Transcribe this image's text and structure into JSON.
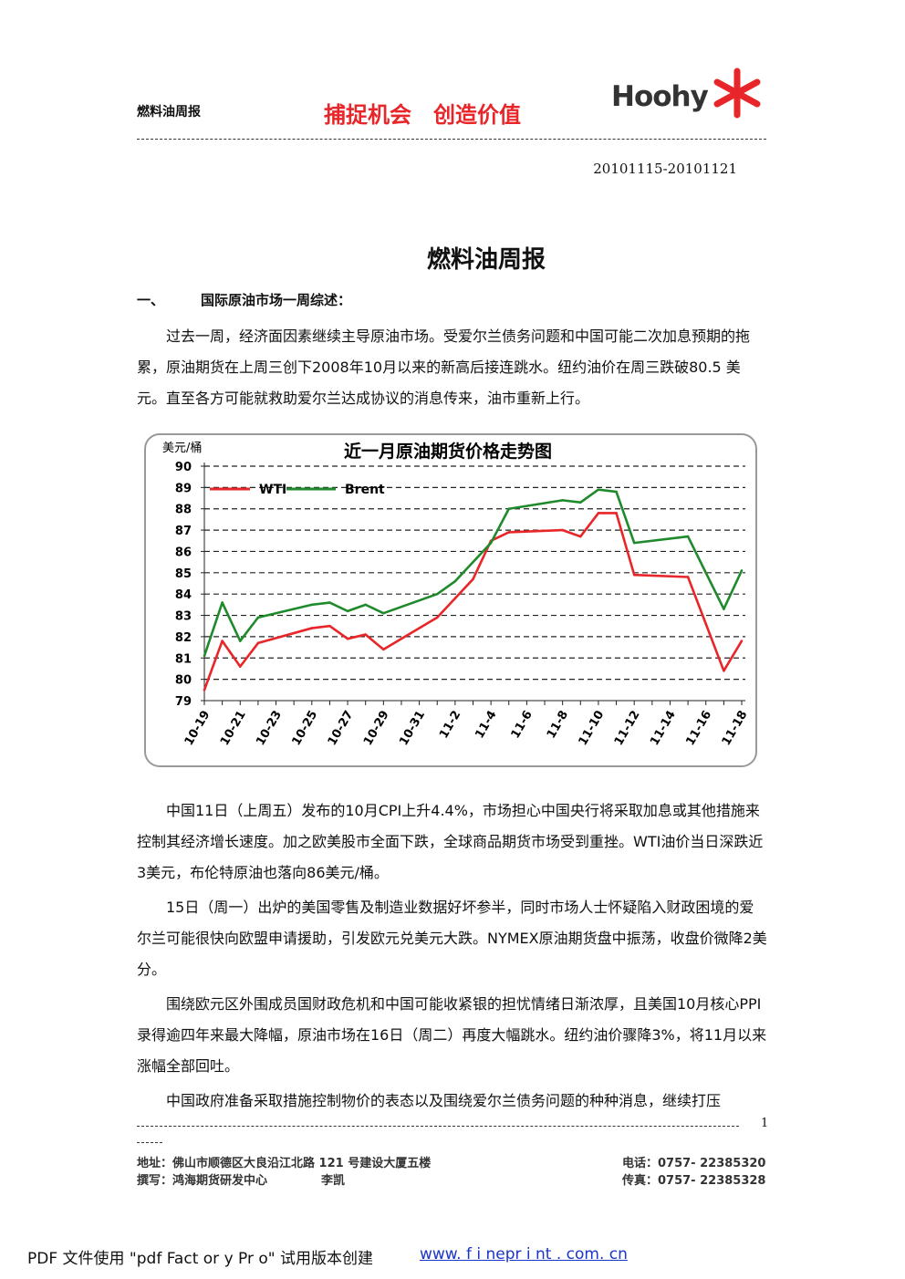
{
  "header": {
    "doc_name": "燃料油周报",
    "slogan": "捕捉机会　创造价值",
    "logo": "Hoohy"
  },
  "date_range": "20101115-20101121",
  "title": "燃料油周报",
  "section": {
    "number": "一、",
    "heading": "国际原油市场一周综述："
  },
  "paragraphs_before": [
    "过去一周，经济面因素继续主导原油市场。受爱尔兰债务问题和中国可能二次加息预期的拖累，原油期货在上周三创下2008年10月以来的新高后接连跳水。纽约油价在周三跌破80.5 美元。直至各方可能就救助爱尔兰达成协议的消息传来，油市重新上行。"
  ],
  "paragraphs_after": [
    "中国11日（上周五）发布的10月CPI上升4.4%，市场担心中国央行将采取加息或其他措施来控制其经济增长速度。加之欧美股市全面下跌，全球商品期货市场受到重挫。WTI油价当日深跌近3美元，布伦特原油也落向86美元/桶。",
    "15日（周一）出炉的美国零售及制造业数据好坏参半，同时市场人士怀疑陷入财政困境的爱尔兰可能很快向欧盟申请援助，引发欧元兑美元大跌。NYMEX原油期货盘中振荡，收盘价微降2美分。",
    "围绕欧元区外围成员国财政危机和中国可能收紧银的担忧情绪日渐浓厚，且美国10月核心PPI录得逾四年来最大降幅，原油市场在16日（周二）再度大幅跳水。纽约油价骤降3%，将11月以来涨幅全部回吐。",
    "中国政府准备采取措施控制物价的表态以及围绕爱尔兰债务问题的种种消息，继续打压"
  ],
  "footer": {
    "page": "1",
    "address": "地址：佛山市顺德区大良沿江北路 121 号建设大厦五楼",
    "phone": "电话：0757- 22385320",
    "author": "撰写：鸿海期货研发中心",
    "author_name": "李凯",
    "fax": "传真：0757- 22385328"
  },
  "watermark": {
    "text": "PDF 文件使用 \"pdf Fact or y Pr o\" 试用版本创建",
    "link": "www. f i nepr i nt . com. cn"
  },
  "chart_data": {
    "type": "line",
    "title": "近一月原油期货价格走势图",
    "y_label": "美元/桶",
    "categories": [
      "10-19",
      null,
      "10-21",
      null,
      "10-23",
      null,
      "10-25",
      null,
      "10-27",
      null,
      "10-29",
      null,
      "10-31",
      null,
      "11-2",
      null,
      "11-4",
      null,
      "11-6",
      null,
      "11-8",
      null,
      "11-10",
      null,
      "11-12",
      null,
      "11-14",
      null,
      "11-16",
      null,
      "11-18"
    ],
    "series": [
      {
        "name": "WTI",
        "color": "#e8262a",
        "values": [
          79.5,
          81.8,
          80.6,
          81.7,
          null,
          null,
          82.4,
          82.5,
          81.9,
          82.1,
          81.4,
          null,
          null,
          82.9,
          83.8,
          84.7,
          86.5,
          86.9,
          null,
          null,
          87.0,
          86.7,
          87.8,
          87.8,
          84.9,
          null,
          null,
          84.8,
          82.6,
          80.4,
          81.8
        ]
      },
      {
        "name": "Brent",
        "color": "#1f8a2c",
        "values": [
          81.1,
          83.6,
          81.8,
          82.9,
          null,
          null,
          83.5,
          83.6,
          83.2,
          83.5,
          83.1,
          null,
          null,
          84.0,
          84.6,
          85.5,
          86.4,
          88.0,
          null,
          null,
          88.4,
          88.3,
          88.9,
          88.8,
          86.4,
          null,
          null,
          86.7,
          85.0,
          83.3,
          85.1
        ]
      }
    ],
    "ylim": [
      79,
      90
    ],
    "yticks": [
      79,
      80,
      81,
      82,
      83,
      84,
      85,
      86,
      87,
      88,
      89,
      90
    ],
    "grid": true,
    "legend": "top-left"
  }
}
